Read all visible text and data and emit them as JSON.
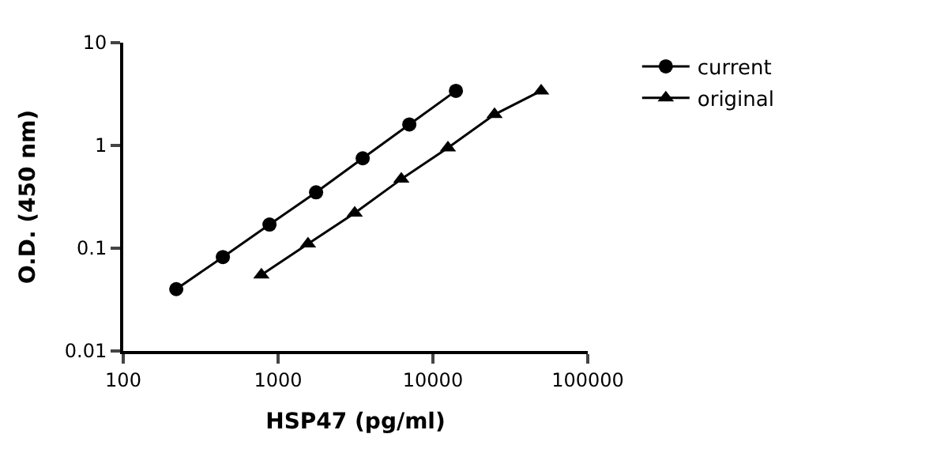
{
  "chart_data": {
    "type": "line",
    "xlabel": "HSP47 (pg/ml)",
    "ylabel": "O.D. (450 nm)",
    "log": "xy",
    "xlim": [
      100,
      100000
    ],
    "xticks": [
      100,
      1000,
      10000,
      100000
    ],
    "ylim": [
      0.01,
      10
    ],
    "yticks": [
      0.01,
      0.1,
      1,
      10
    ],
    "legend": "top right",
    "series": [
      {
        "name": "current",
        "color": "#000000",
        "marker": "circle",
        "x": [
          220,
          440,
          880,
          1760,
          3520,
          7040,
          14080
        ],
        "values": [
          0.04,
          0.082,
          0.17,
          0.35,
          0.75,
          1.6,
          3.4
        ]
      },
      {
        "name": "original",
        "color": "#000000",
        "marker": "triangle",
        "x": [
          780,
          1560,
          3125,
          6250,
          12500,
          25000,
          50000
        ],
        "values": [
          0.055,
          0.11,
          0.22,
          0.47,
          0.95,
          2.0,
          3.4
        ]
      }
    ]
  }
}
